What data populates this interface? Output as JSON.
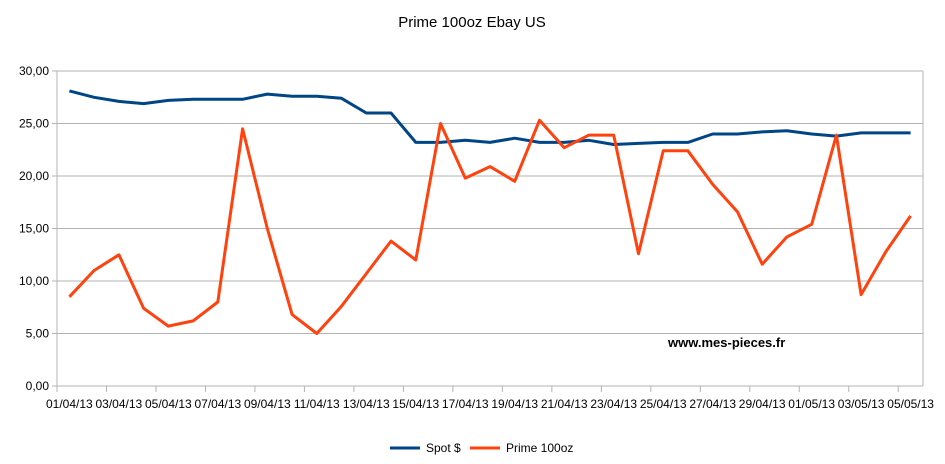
{
  "chart_data": {
    "type": "line",
    "title": "Prime 100oz Ebay US",
    "watermark": "www.mes-pieces.fr",
    "xlabel": "",
    "ylabel": "",
    "ylim": [
      0,
      30
    ],
    "yticks": [
      "0,00",
      "5,00",
      "10,00",
      "15,00",
      "20,00",
      "25,00",
      "30,00"
    ],
    "grid": true,
    "legend_placement": "bottom",
    "categories": [
      "01/04/13",
      "02/04/13",
      "03/04/13",
      "04/04/13",
      "05/04/13",
      "06/04/13",
      "07/04/13",
      "08/04/13",
      "09/04/13",
      "10/04/13",
      "11/04/13",
      "12/04/13",
      "13/04/13",
      "14/04/13",
      "15/04/13",
      "16/04/13",
      "17/04/13",
      "18/04/13",
      "19/04/13",
      "20/04/13",
      "21/04/13",
      "22/04/13",
      "23/04/13",
      "24/04/13",
      "25/04/13",
      "26/04/13",
      "27/04/13",
      "28/04/13",
      "29/04/13",
      "30/04/13",
      "01/05/13",
      "02/05/13",
      "03/05/13",
      "04/05/13",
      "05/05/13"
    ],
    "series": [
      {
        "name": "Spot $",
        "color": "#004586",
        "values": [
          28.1,
          27.5,
          27.1,
          26.9,
          27.2,
          27.3,
          27.3,
          27.3,
          27.8,
          27.6,
          27.6,
          27.4,
          26.0,
          26.0,
          23.2,
          23.2,
          23.4,
          23.2,
          23.6,
          23.2,
          23.2,
          23.4,
          23.0,
          23.1,
          23.2,
          23.2,
          24.0,
          24.0,
          24.2,
          24.3,
          24.0,
          23.8,
          24.1,
          24.1,
          24.1
        ]
      },
      {
        "name": "Prime 100oz",
        "color": "#ff420e",
        "values": [
          8.5,
          11.0,
          12.5,
          7.4,
          5.7,
          6.2,
          8.0,
          24.5,
          15.0,
          6.8,
          5.0,
          7.6,
          10.7,
          13.8,
          12.0,
          25.0,
          19.8,
          20.9,
          19.5,
          25.3,
          22.7,
          23.9,
          23.9,
          12.6,
          22.4,
          22.4,
          19.2,
          16.6,
          11.6,
          14.2,
          15.4,
          23.9,
          8.7,
          12.8,
          16.2
        ]
      }
    ]
  }
}
